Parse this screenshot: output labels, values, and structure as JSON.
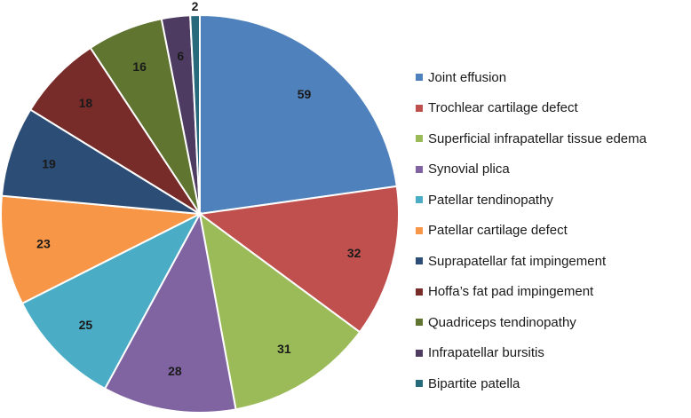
{
  "chart_data": {
    "type": "pie",
    "title": "",
    "legend_position": "right",
    "start_angle_deg": 0,
    "direction": "clockwise",
    "slices": [
      {
        "label": "Joint effusion",
        "value": 59,
        "value_label": "59",
        "color": "#4f81bd"
      },
      {
        "label": "Trochlear cartilage defect",
        "value": 32,
        "value_label": "32",
        "color": "#c0504d"
      },
      {
        "label": "Superficial infrapatellar tissue edema",
        "value": 31,
        "value_label": "31",
        "color": "#9bbb59"
      },
      {
        "label": "Synovial plica",
        "value": 28,
        "value_label": "28",
        "color": "#8064a2"
      },
      {
        "label": "Patellar tendinopathy",
        "value": 25,
        "value_label": "25",
        "color": "#4bacc6"
      },
      {
        "label": "Patellar cartilage defect",
        "value": 23,
        "value_label": "23",
        "color": "#f79646"
      },
      {
        "label": "Suprapatellar fat impingement",
        "value": 19,
        "value_label": "19",
        "color": "#2c4d75"
      },
      {
        "label": "Hoffa’s fat pad impingement",
        "value": 18,
        "value_label": "18",
        "color": "#772c2a"
      },
      {
        "label": "Quadriceps tendinopathy",
        "value": 16,
        "value_label": "16",
        "color": "#5f7530"
      },
      {
        "label": "Infrapatellar bursitis",
        "value": 6,
        "value_label": "6",
        "color": "#4d3b62"
      },
      {
        "label": "Bipartite patella",
        "value": 2,
        "value_label": "2",
        "color": "#276a7c"
      }
    ]
  }
}
